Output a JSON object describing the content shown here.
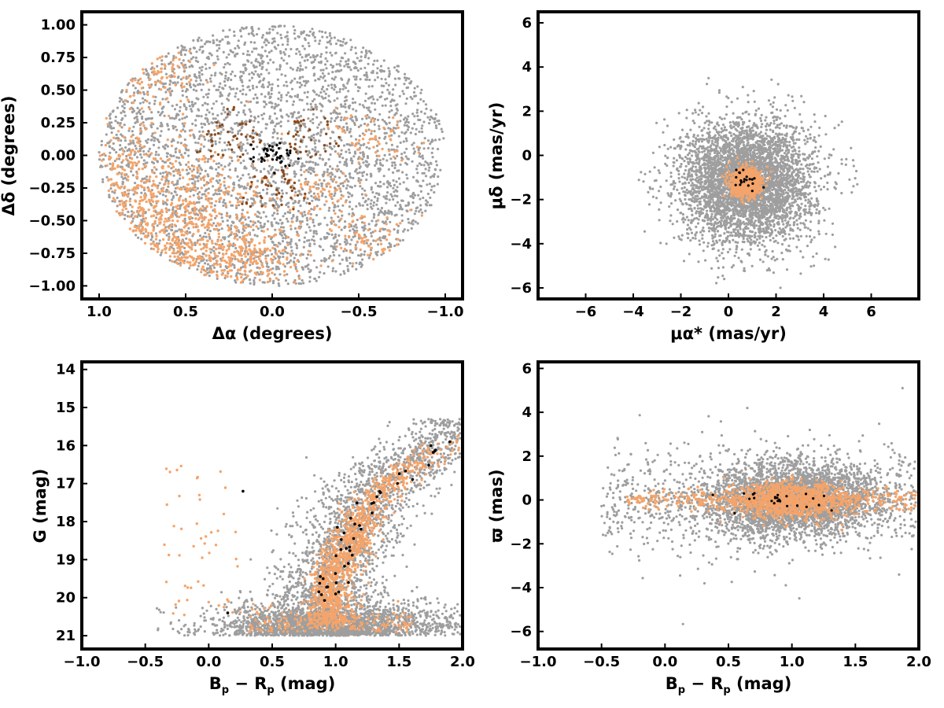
{
  "colors": {
    "field": "#9e9e9e",
    "member": "#f4a46a",
    "core": "#8b4a1c",
    "bright": "#000000",
    "frame": "#000000"
  },
  "chart_data": [
    {
      "id": "sky",
      "type": "scatter",
      "xlabel": "Δα (degrees)",
      "ylabel": "Δδ (degrees)",
      "xlim": [
        1.1,
        -1.1
      ],
      "ylim": [
        -1.1,
        1.1
      ],
      "xticks": [
        1.0,
        0.5,
        0.0,
        -0.5,
        -1.0
      ],
      "xtick_labels": [
        "1.0",
        "0.5",
        "0.0",
        "−0.5",
        "−1.0"
      ],
      "yticks": [
        1.0,
        0.75,
        0.5,
        0.25,
        0.0,
        -0.25,
        -0.5,
        -0.75,
        -1.0
      ],
      "ytick_labels": [
        "1.00",
        "0.75",
        "0.50",
        "0.25",
        "0.00",
        "−0.25",
        "−0.50",
        "−0.75",
        "−1.00"
      ],
      "series": [
        {
          "role": "field",
          "color": "#9e9e9e",
          "count": 3400,
          "distribution": "uniform disk of radius 1 deg centred on (0,0)"
        },
        {
          "role": "members",
          "color": "#f4a46a",
          "count": 1500,
          "distribution": "concentrated toward Δα 0.3 to 1.0, Δδ −1.0 to 0.3, plus patches near (0.65,0.65), (−0.3,−0.3), (−0.6,0.2), (−0.6,−0.6)"
        },
        {
          "role": "core",
          "color": "#8b4a1c",
          "count": 230,
          "distribution": "arcs around centre, radius 0.1–0.45 deg"
        },
        {
          "role": "bright",
          "color": "#000000",
          "count": 45,
          "points_sample": [
            [
              0.0,
              0.0
            ],
            [
              0.05,
              0.05
            ],
            [
              -0.05,
              -0.05
            ],
            [
              0.1,
              -0.02
            ],
            [
              -0.1,
              0.08
            ],
            [
              0.02,
              -0.08
            ],
            [
              -0.03,
              0.02
            ],
            [
              0.08,
              0.06
            ]
          ]
        }
      ]
    },
    {
      "id": "pm",
      "type": "scatter",
      "xlabel": "μα* (mas/yr)",
      "ylabel": "μδ (mas/yr)",
      "xlim": [
        -8,
        8
      ],
      "ylim": [
        -6.5,
        6.5
      ],
      "xticks": [
        -6,
        -4,
        -2,
        0,
        2,
        4,
        6
      ],
      "xtick_labels": [
        "−6",
        "−4",
        "−2",
        "0",
        "2",
        "4",
        "6"
      ],
      "yticks": [
        6,
        4,
        2,
        0,
        -2,
        -4,
        -6
      ],
      "ytick_labels": [
        "6",
        "4",
        "2",
        "0",
        "−2",
        "−4",
        "−6"
      ],
      "series": [
        {
          "role": "field",
          "color": "#9e9e9e",
          "count": 4200,
          "centre": [
            0.8,
            -1.2
          ],
          "spread": [
            1.4,
            1.4
          ],
          "cut": "|μ − centre| < 5 mas/yr"
        },
        {
          "role": "members",
          "color": "#f4a46a",
          "count": 900,
          "centre": [
            0.75,
            -1.25
          ],
          "spread": [
            0.32,
            0.3
          ]
        },
        {
          "role": "bright",
          "color": "#000000",
          "count": 20,
          "centre": [
            0.75,
            -1.2
          ],
          "spread": [
            0.3,
            0.3
          ]
        }
      ]
    },
    {
      "id": "cmd",
      "type": "scatter",
      "xlabel_main": "B",
      "xlabel_sub1": "p",
      "xlabel_mid": " − R",
      "xlabel_sub2": "p",
      "xlabel_unit": " (mag)",
      "ylabel": "G (mag)",
      "xlim": [
        -1.0,
        2.0
      ],
      "ylim": [
        13.8,
        21.35
      ],
      "y_inverted": true,
      "xticks": [
        -1.0,
        -0.5,
        0.0,
        0.5,
        1.0,
        1.5,
        2.0
      ],
      "xtick_labels": [
        "−1.0",
        "−0.5",
        "0.0",
        "0.5",
        "1.0",
        "1.5",
        "2.0"
      ],
      "yticks": [
        21,
        20,
        19,
        18,
        17,
        16,
        15,
        14
      ],
      "ytick_labels": [
        "21",
        "20",
        "19",
        "18",
        "17",
        "16",
        "15",
        "14"
      ],
      "series": [
        {
          "role": "field",
          "color": "#9e9e9e",
          "count": 4200,
          "description": "faint band G 19.5–21 across colour 0–2, sequence G 15–21 at colour 0.8–1.6"
        },
        {
          "role": "members",
          "color": "#f4a46a",
          "count": 1400,
          "sequence": [
            [
              0.95,
              19.5
            ],
            [
              1.05,
              19.0
            ],
            [
              1.15,
              18.3
            ],
            [
              1.25,
              17.5
            ],
            [
              1.45,
              16.9
            ],
            [
              1.7,
              16.3
            ],
            [
              2.0,
              15.7
            ]
          ]
        },
        {
          "role": "bright",
          "color": "#000000",
          "count": 40,
          "points_sample": [
            [
              0.15,
              20.4
            ],
            [
              0.27,
              17.2
            ],
            [
              1.0,
              19.9
            ],
            [
              1.1,
              19.1
            ],
            [
              1.2,
              18.2
            ],
            [
              1.3,
              17.5
            ],
            [
              1.75,
              16.0
            ],
            [
              1.9,
              15.9
            ]
          ]
        }
      ]
    },
    {
      "id": "parallax",
      "type": "scatter",
      "xlabel_main": "B",
      "xlabel_sub1": "p",
      "xlabel_mid": " − R",
      "xlabel_sub2": "p",
      "xlabel_unit": " (mag)",
      "ylabel": "ϖ (mas)",
      "xlim": [
        -1.0,
        2.0
      ],
      "ylim": [
        -6.8,
        6.3
      ],
      "xticks": [
        -1.0,
        -0.5,
        0.0,
        0.5,
        1.0,
        1.5,
        2.0
      ],
      "xtick_labels": [
        "−1.0",
        "−0.5",
        "0.0",
        "0.5",
        "1.0",
        "1.5",
        "2.0"
      ],
      "yticks": [
        6,
        4,
        2,
        0,
        -2,
        -4,
        -6
      ],
      "ytick_labels": [
        "6",
        "4",
        "2",
        "0",
        "−2",
        "−4",
        "−6"
      ],
      "series": [
        {
          "role": "field",
          "color": "#9e9e9e",
          "count": 4300,
          "centre": [
            1.0,
            0.0
          ],
          "description": "broad clump colour 0.5–1.5, ϖ −2.5 to 2.5; tails to colour −0.5 and 2.0"
        },
        {
          "role": "members",
          "color": "#f4a46a",
          "count": 1300,
          "description": "narrow band ϖ ≈ 0 ± 0.6 from colour −0.3 to 2.0, densest at 0.7–1.3"
        },
        {
          "role": "bright",
          "color": "#000000",
          "count": 25,
          "centre": [
            1.0,
            0.0
          ]
        }
      ]
    }
  ]
}
